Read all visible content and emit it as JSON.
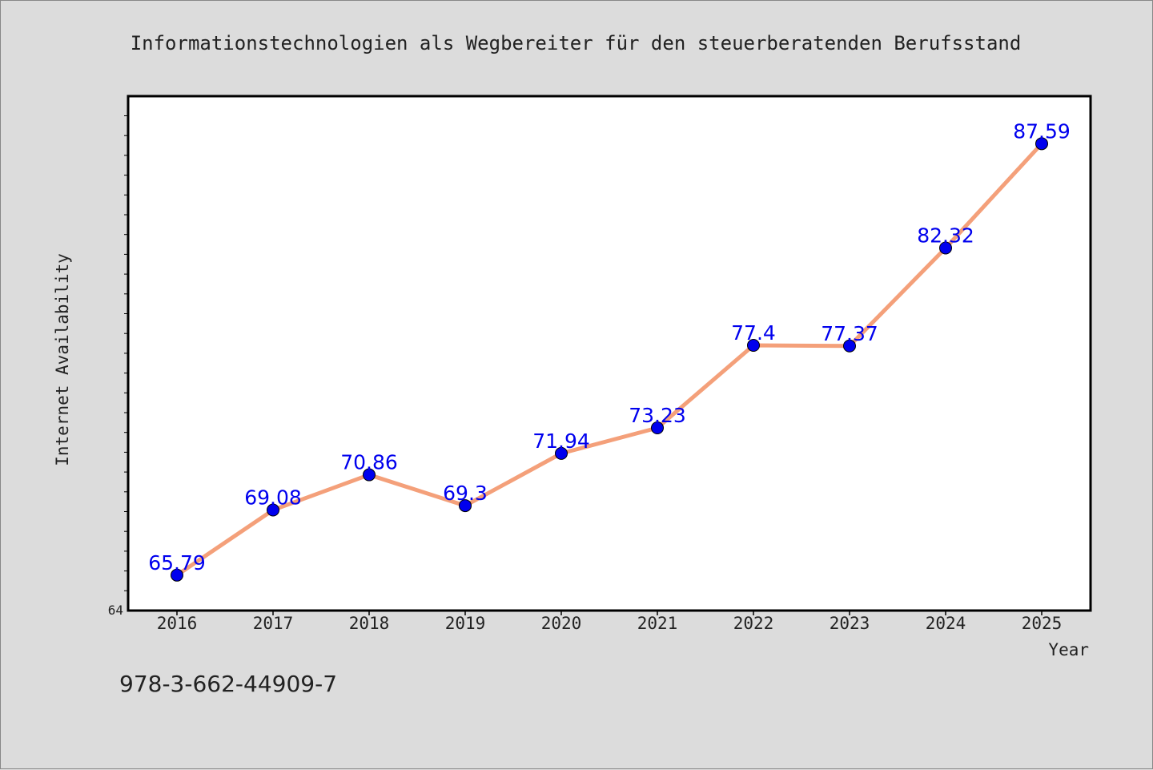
{
  "chart_data": {
    "type": "line",
    "title": "Informationstechnologien als Wegbereiter für den steuerberatenden Berufsstand",
    "xlabel": "Year",
    "ylabel": "Internet Availability",
    "categories": [
      "2016",
      "2017",
      "2018",
      "2019",
      "2020",
      "2021",
      "2022",
      "2023",
      "2024",
      "2025"
    ],
    "series": [
      {
        "values": [
          65.79,
          69.08,
          70.86,
          69.3,
          71.94,
          73.23,
          77.4,
          77.37,
          82.32,
          87.59
        ],
        "labels": [
          "65.79",
          "69.08",
          "70.86",
          "69.3",
          "71.94",
          "73.23",
          "77.4",
          "77.37",
          "82.32",
          "87.59"
        ]
      }
    ],
    "ylim": [
      64,
      90
    ],
    "y_tick_labels": [
      "64"
    ],
    "grid": false,
    "line_color": "#f4a07a",
    "marker_color": "#0000ee",
    "label_color": "#0000ee"
  },
  "footer": {
    "isbn": "978-3-662-44909-7"
  }
}
